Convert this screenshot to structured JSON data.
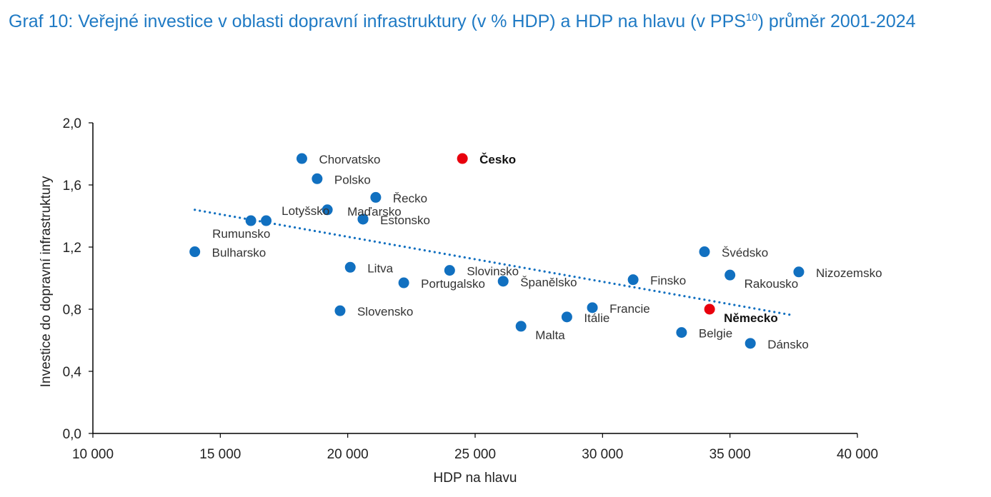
{
  "chart_data": {
    "type": "scatter",
    "title_main": "Graf 10: Veřejné investice v oblasti dopravní infrastruktury (v % HDP) a HDP na hlavu (v PPS",
    "title_sup": "10",
    "title_end": ") průměr 2001-2024",
    "xlabel": "HDP na hlavu",
    "ylabel": "Investice do dopravní infrastruktury",
    "xlim": [
      10000,
      40000
    ],
    "ylim": [
      0,
      2.0
    ],
    "x_ticks": [
      {
        "value": 10000,
        "label": "10 000"
      },
      {
        "value": 15000,
        "label": "15 000"
      },
      {
        "value": 20000,
        "label": "20 000"
      },
      {
        "value": 25000,
        "label": "25 000"
      },
      {
        "value": 30000,
        "label": "30 000"
      },
      {
        "value": 35000,
        "label": "35 000"
      },
      {
        "value": 40000,
        "label": "40 000"
      }
    ],
    "y_ticks": [
      {
        "value": 0.0,
        "label": "0,0"
      },
      {
        "value": 0.4,
        "label": "0,4"
      },
      {
        "value": 0.8,
        "label": "0,8"
      },
      {
        "value": 1.2,
        "label": "1,2"
      },
      {
        "value": 1.6,
        "label": "1,6"
      },
      {
        "value": 2.0,
        "label": "2,0"
      }
    ],
    "grid": false,
    "colors": {
      "default": "#1170c0",
      "highlight": "#e8000d",
      "trend": "#1170c0",
      "title": "#1f7ac4"
    },
    "trendline": {
      "style": "dotted",
      "x": [
        14000,
        37500
      ],
      "y": [
        1.44,
        0.76
      ]
    },
    "points": [
      {
        "name": "Chorvatsko",
        "x": 18200,
        "y": 1.77,
        "highlight": false,
        "label_side": "right"
      },
      {
        "name": "Česko",
        "x": 24500,
        "y": 1.77,
        "highlight": true,
        "label_side": "right"
      },
      {
        "name": "Polsko",
        "x": 18800,
        "y": 1.64,
        "highlight": false,
        "label_side": "right"
      },
      {
        "name": "Řecko",
        "x": 21100,
        "y": 1.52,
        "highlight": false,
        "label_side": "right"
      },
      {
        "name": "Lotyšsko",
        "x": 19200,
        "y": 1.44,
        "highlight": false,
        "label_side": "left"
      },
      {
        "name": "Maďarsko",
        "x": 20600,
        "y": 1.38,
        "highlight": false,
        "label_side": "above"
      },
      {
        "name": "Estonsko",
        "x": 20600,
        "y": 1.38,
        "highlight": false,
        "label_side": "right"
      },
      {
        "name": "Rumunsko",
        "x": 16200,
        "y": 1.37,
        "highlight": false,
        "label_side": "below"
      },
      {
        "name": "",
        "x": 16800,
        "y": 1.37,
        "highlight": false,
        "label_side": "none"
      },
      {
        "name": "Bulharsko",
        "x": 14000,
        "y": 1.17,
        "highlight": false,
        "label_side": "right"
      },
      {
        "name": "Švédsko",
        "x": 34000,
        "y": 1.17,
        "highlight": false,
        "label_side": "right"
      },
      {
        "name": "Litva",
        "x": 20100,
        "y": 1.07,
        "highlight": false,
        "label_side": "right"
      },
      {
        "name": "Slovinsko",
        "x": 24000,
        "y": 1.05,
        "highlight": false,
        "label_side": "right"
      },
      {
        "name": "Nizozemsko",
        "x": 37700,
        "y": 1.04,
        "highlight": false,
        "label_side": "right"
      },
      {
        "name": "Rakousko",
        "x": 35000,
        "y": 1.02,
        "highlight": false,
        "label_side": "below-right"
      },
      {
        "name": "Finsko",
        "x": 31200,
        "y": 0.99,
        "highlight": false,
        "label_side": "right"
      },
      {
        "name": "Španělsko",
        "x": 26100,
        "y": 0.98,
        "highlight": false,
        "label_side": "right"
      },
      {
        "name": "Portugalsko",
        "x": 22200,
        "y": 0.97,
        "highlight": false,
        "label_side": "right"
      },
      {
        "name": "Francie",
        "x": 29600,
        "y": 0.81,
        "highlight": false,
        "label_side": "right"
      },
      {
        "name": "Německo",
        "x": 34200,
        "y": 0.8,
        "highlight": true,
        "label_side": "below-right"
      },
      {
        "name": "Slovensko",
        "x": 19700,
        "y": 0.79,
        "highlight": false,
        "label_side": "right"
      },
      {
        "name": "Itálie",
        "x": 28600,
        "y": 0.75,
        "highlight": false,
        "label_side": "right"
      },
      {
        "name": "Malta",
        "x": 26800,
        "y": 0.69,
        "highlight": false,
        "label_side": "below-right"
      },
      {
        "name": "Belgie",
        "x": 33100,
        "y": 0.65,
        "highlight": false,
        "label_side": "right"
      },
      {
        "name": "Dánsko",
        "x": 35800,
        "y": 0.58,
        "highlight": false,
        "label_side": "right"
      }
    ]
  }
}
